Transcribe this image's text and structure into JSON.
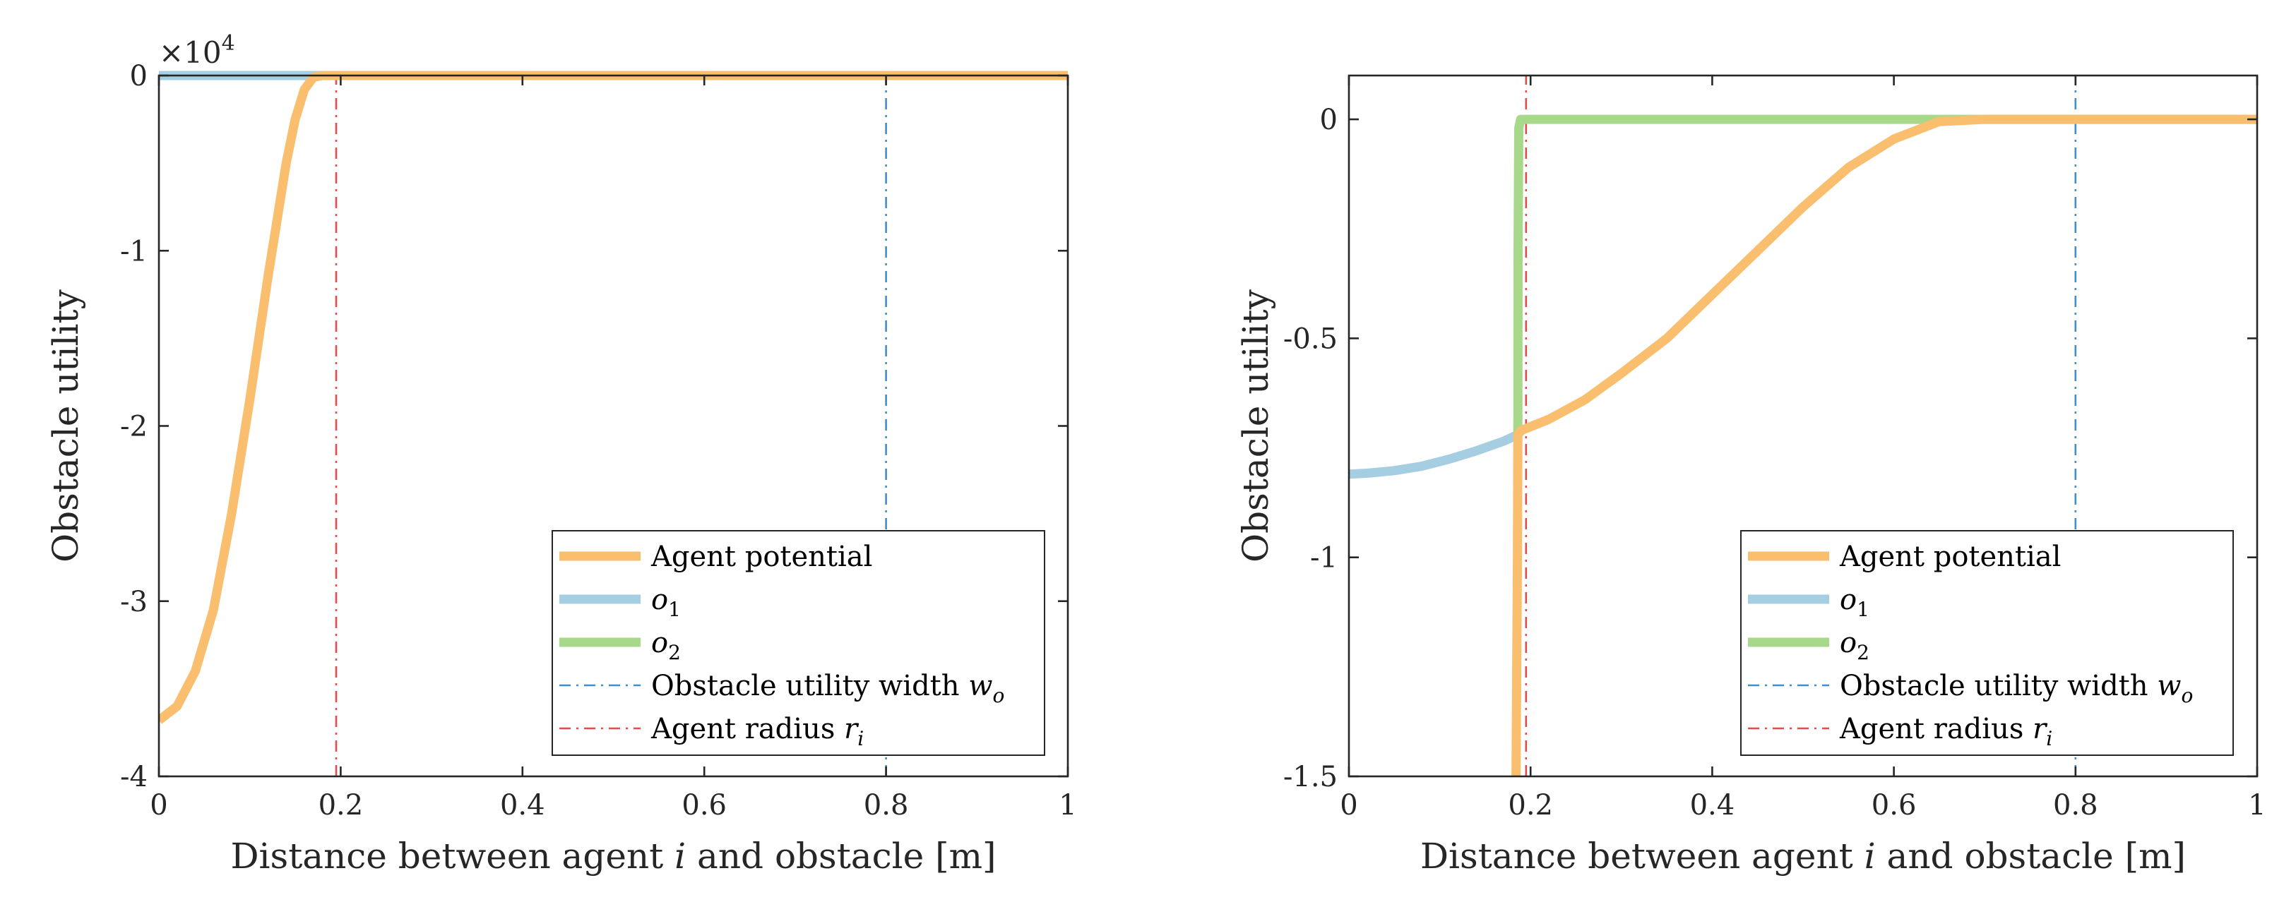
{
  "chart_data": [
    {
      "type": "line",
      "xlabel": "Distance between agent i and obstacle [m]",
      "ylabel": "Obstacle utility",
      "xlim": [
        0,
        1
      ],
      "ylim": [
        -40000,
        0
      ],
      "xticks": [
        0,
        0.2,
        0.4,
        0.6,
        0.8,
        1
      ],
      "xtick_labels": [
        "0",
        "0.2",
        "0.4",
        "0.6",
        "0.8",
        "1"
      ],
      "yticks": [
        0,
        -10000,
        -20000,
        -30000,
        -40000
      ],
      "ytick_labels": [
        "0",
        "-1",
        "-2",
        "-3",
        "-4"
      ],
      "y_exponent_label": "×10",
      "y_exponent_power": "4",
      "legend_position": "bottom-right",
      "series": [
        {
          "name": "Agent potential",
          "color": "#f9bf6f",
          "style": "solid",
          "x": [
            0,
            0.02,
            0.04,
            0.06,
            0.08,
            0.1,
            0.12,
            0.14,
            0.15,
            0.16,
            0.17,
            0.18,
            0.25,
            0.5,
            0.75,
            1.0
          ],
          "y": [
            -36800,
            -36000,
            -34000,
            -30500,
            -25000,
            -18500,
            -11500,
            -5000,
            -2500,
            -800,
            -100,
            0,
            0,
            0,
            0,
            0
          ]
        },
        {
          "name": "o₁",
          "color": "#a6cee3",
          "style": "solid",
          "x": [
            0,
            0.18
          ],
          "y": [
            0,
            0
          ]
        },
        {
          "name": "o₂",
          "color": "#a8d98a",
          "style": "solid",
          "x": [],
          "y": []
        },
        {
          "name": "Obstacle utility width w_o",
          "color": "#3f8fd0",
          "style": "dashdot",
          "x": [
            0.8,
            0.8
          ],
          "y": [
            -40000,
            0
          ]
        },
        {
          "name": "Agent radius r_i",
          "color": "#e94b4b",
          "style": "dashdot",
          "x": [
            0.195,
            0.195
          ],
          "y": [
            -40000,
            0
          ]
        }
      ]
    },
    {
      "type": "line",
      "xlabel": "Distance between agent i and obstacle [m]",
      "ylabel": "Obstacle utility",
      "xlim": [
        0,
        1
      ],
      "ylim": [
        -1.5,
        0.1
      ],
      "xticks": [
        0,
        0.2,
        0.4,
        0.6,
        0.8,
        1
      ],
      "xtick_labels": [
        "0",
        "0.2",
        "0.4",
        "0.6",
        "0.8",
        "1"
      ],
      "yticks": [
        0,
        -0.5,
        -1,
        -1.5
      ],
      "ytick_labels": [
        "0",
        "-0.5",
        "-1",
        "-1.5"
      ],
      "legend_position": "bottom-right",
      "series": [
        {
          "name": "Agent potential",
          "color": "#f9bf6f",
          "style": "solid",
          "x": [
            0.184,
            0.1855,
            0.186,
            0.19,
            0.22,
            0.26,
            0.3,
            0.35,
            0.4,
            0.45,
            0.5,
            0.55,
            0.6,
            0.65,
            0.7,
            0.8,
            0.9,
            1.0
          ],
          "y": [
            -1.5,
            -1.0,
            -0.72,
            -0.71,
            -0.685,
            -0.64,
            -0.58,
            -0.5,
            -0.4,
            -0.3,
            -0.2,
            -0.11,
            -0.045,
            -0.005,
            0,
            0,
            0,
            0
          ]
        },
        {
          "name": "o₁",
          "color": "#a6cee3",
          "style": "solid",
          "x": [
            0,
            0.02,
            0.05,
            0.08,
            0.11,
            0.14,
            0.17,
            0.186
          ],
          "y": [
            -0.81,
            -0.808,
            -0.802,
            -0.792,
            -0.776,
            -0.757,
            -0.735,
            -0.72
          ]
        },
        {
          "name": "o₂",
          "color": "#a8d98a",
          "style": "solid",
          "x": [
            0.186,
            0.1862,
            0.187,
            0.189,
            0.5,
            1.0
          ],
          "y": [
            -0.72,
            -0.3,
            -0.02,
            0,
            0,
            0
          ]
        },
        {
          "name": "Obstacle utility width w_o",
          "color": "#3f8fd0",
          "style": "dashdot",
          "x": [
            0.8,
            0.8
          ],
          "y": [
            -1.5,
            0.1
          ]
        },
        {
          "name": "Agent radius r_i",
          "color": "#e94b4b",
          "style": "dashdot",
          "x": [
            0.195,
            0.195
          ],
          "y": [
            -1.5,
            0.1
          ]
        }
      ]
    }
  ],
  "legend_entries": [
    {
      "text": "Agent potential",
      "math": ""
    },
    {
      "text": "",
      "math": "o",
      "sub": "1"
    },
    {
      "text": "",
      "math": "o",
      "sub": "2"
    },
    {
      "text": "Obstacle utility width ",
      "math": "w",
      "sub": "o"
    },
    {
      "text": "Agent radius ",
      "math": "r",
      "sub": "i"
    }
  ],
  "xlabel_parts": {
    "before": "Distance between agent ",
    "math": "i",
    "after": " and obstacle [m]"
  }
}
